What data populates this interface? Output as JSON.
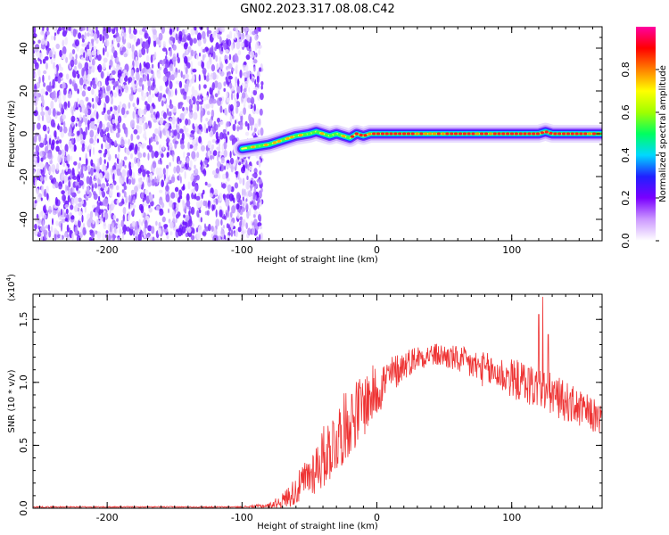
{
  "title": "GN02.2023.317.08.08.C42",
  "chart_data": [
    {
      "type": "heatmap",
      "name": "spectrogram",
      "xlabel": "Height of straight line (km)",
      "ylabel": "Frequency (Hz)",
      "xlim": [
        -255,
        167
      ],
      "ylim": [
        -50,
        50
      ],
      "xticks": [
        -200,
        -100,
        0,
        100
      ],
      "yticks": [
        -40,
        -20,
        0,
        20,
        40
      ],
      "xtick_labels": [
        "-200",
        "-100",
        "0",
        "100"
      ],
      "ytick_labels": [
        "-40",
        "-20",
        "0",
        "20",
        "40"
      ],
      "noise_region_x": [
        -255,
        -85
      ],
      "signal_trace": {
        "x": [
          -100,
          -90,
          -80,
          -70,
          -60,
          -50,
          -45,
          -40,
          -35,
          -30,
          -25,
          -20,
          -15,
          -10,
          -5,
          0,
          10,
          20,
          30,
          40,
          50,
          60,
          70,
          80,
          90,
          100,
          110,
          120,
          125,
          130,
          140,
          150,
          160,
          167
        ],
        "frequency": [
          -7,
          -6,
          -5,
          -3,
          -1,
          0,
          1,
          0,
          -1,
          0,
          -1,
          -2,
          0,
          -1,
          0,
          0,
          0,
          0,
          0,
          0,
          0,
          0,
          0,
          0,
          0,
          0,
          0,
          0,
          1,
          0,
          0,
          0,
          0,
          0
        ]
      },
      "colorbar": {
        "label": "Normalized spectral amplitude",
        "ticks": [
          0.0,
          0.2,
          0.4,
          0.6,
          0.8
        ],
        "tick_labels": [
          "0.0",
          "0.2",
          "0.4",
          "0.6",
          "0.8"
        ],
        "range": [
          0,
          1
        ],
        "colors": [
          "#ffffff",
          "#cc99ff",
          "#7a00ff",
          "#2020ff",
          "#00d8ff",
          "#00ff60",
          "#a0ff00",
          "#ffff00",
          "#ff8000",
          "#ff0000",
          "#ff00a0"
        ]
      }
    },
    {
      "type": "line",
      "name": "snr",
      "xlabel": "Height of straight line (km)",
      "ylabel": "SNR (10 * v/v)",
      "scale_label": "(x10",
      "scale_exponent": "4",
      "scale_close": ")",
      "xlim": [
        -255,
        167
      ],
      "ylim": [
        0,
        1.7
      ],
      "xticks": [
        -200,
        -100,
        0,
        100
      ],
      "yticks": [
        0.0,
        0.5,
        1.0,
        1.5
      ],
      "xtick_labels": [
        "-200",
        "-100",
        "0",
        "100"
      ],
      "ytick_labels": [
        "0.0",
        "0.5",
        "1.0",
        "1.5"
      ],
      "color": "#ee3333",
      "series": [
        {
          "x": [
            -255,
            -200,
            -150,
            -100,
            -80,
            -70,
            -60,
            -50,
            -40,
            -30,
            -20,
            -10,
            0,
            10,
            20,
            30,
            40,
            50,
            60,
            70,
            80,
            90,
            100,
            110,
            120,
            130,
            140,
            150,
            160,
            167
          ],
          "values": [
            0.01,
            0.01,
            0.01,
            0.01,
            0.02,
            0.06,
            0.14,
            0.26,
            0.4,
            0.55,
            0.7,
            0.82,
            0.94,
            1.05,
            1.14,
            1.2,
            1.22,
            1.21,
            1.18,
            1.14,
            1.1,
            1.07,
            1.03,
            1.0,
            0.95,
            0.9,
            0.85,
            0.79,
            0.74,
            0.7
          ],
          "spread": [
            0.005,
            0.005,
            0.005,
            0.005,
            0.02,
            0.06,
            0.12,
            0.18,
            0.25,
            0.28,
            0.28,
            0.26,
            0.22,
            0.16,
            0.12,
            0.1,
            0.09,
            0.1,
            0.11,
            0.13,
            0.14,
            0.15,
            0.16,
            0.17,
            0.18,
            0.17,
            0.16,
            0.15,
            0.14,
            0.13
          ]
        }
      ],
      "peaks": [
        {
          "x": 123,
          "value": 1.68
        },
        {
          "x": 120,
          "value": 1.54
        },
        {
          "x": 127,
          "value": 1.38
        }
      ]
    }
  ]
}
